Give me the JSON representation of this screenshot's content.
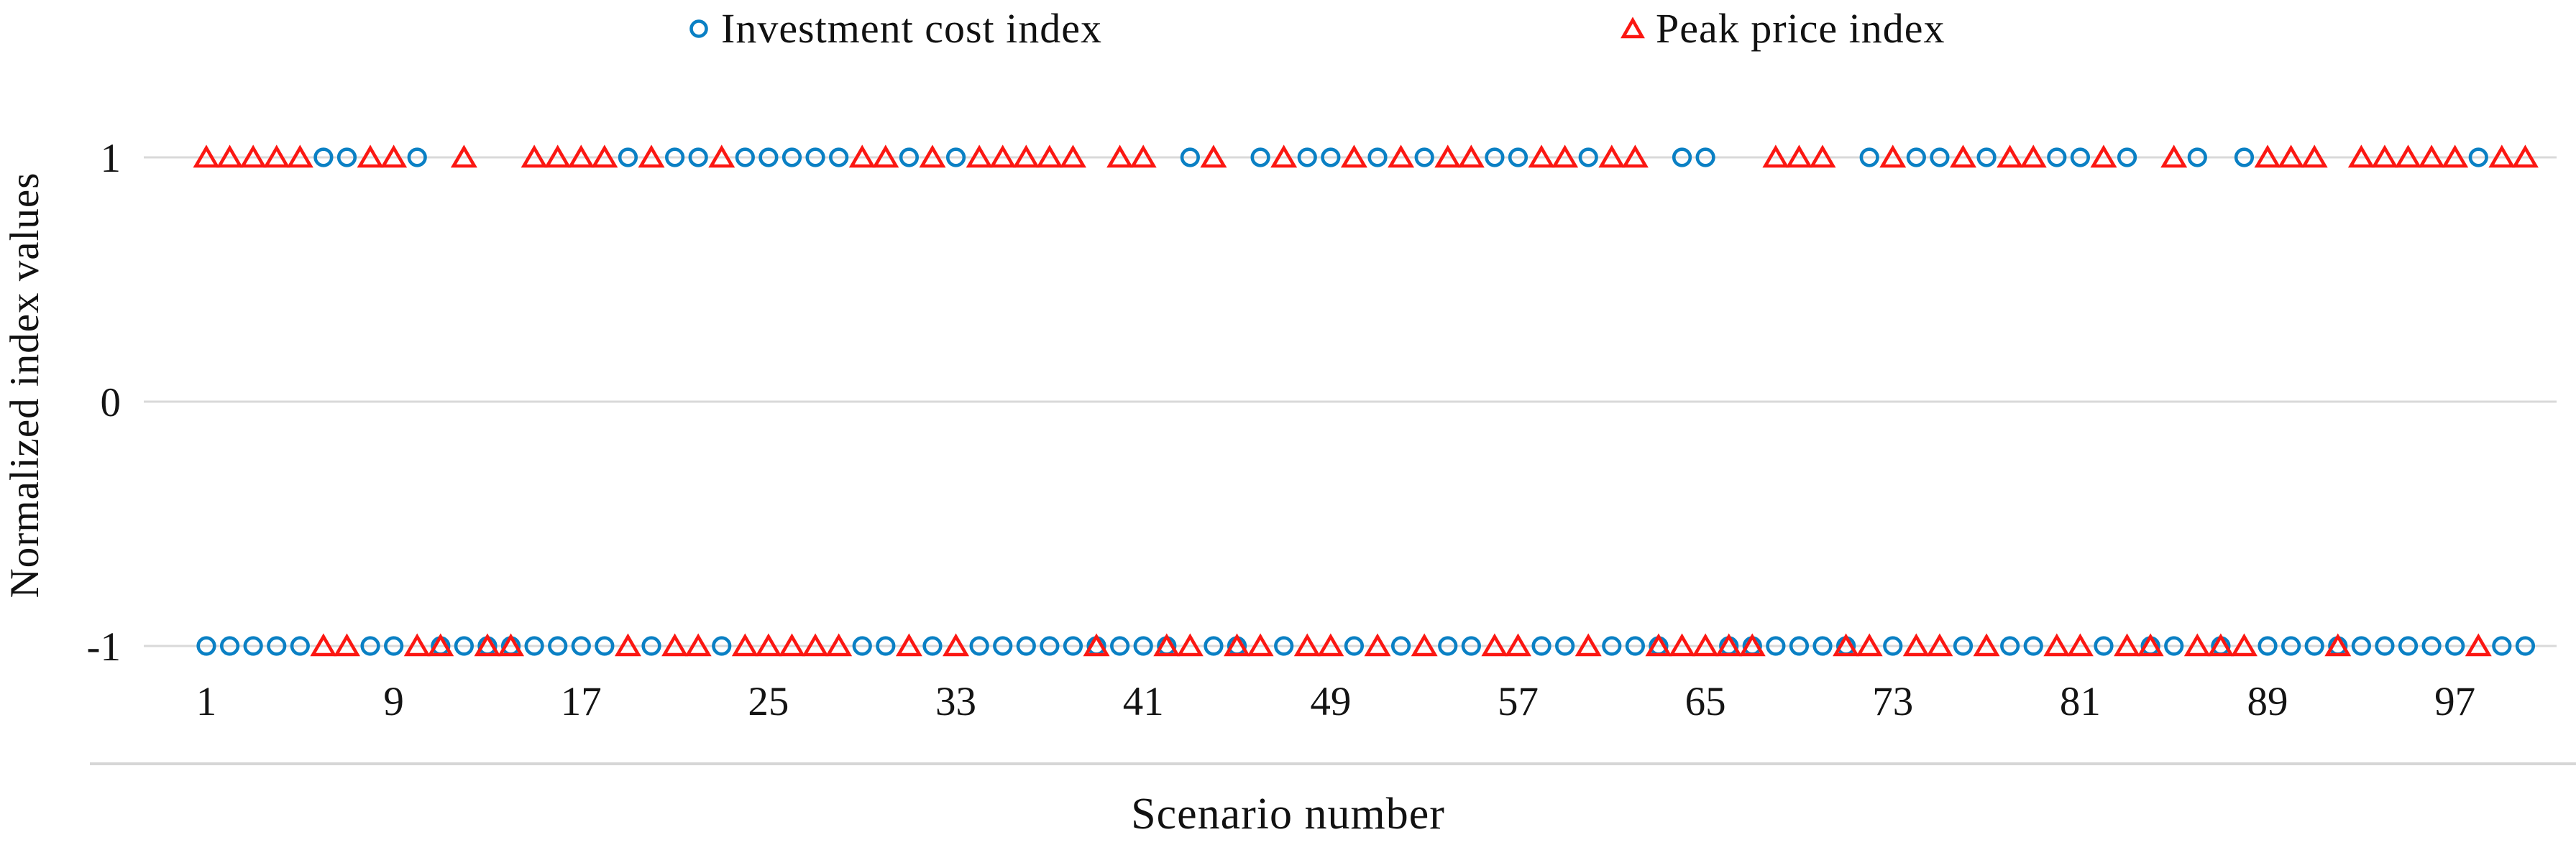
{
  "chart_data": {
    "type": "scatter",
    "title": "",
    "xlabel": "Scenario number",
    "ylabel": "Normalized index values",
    "x_range": [
      1,
      100
    ],
    "x_tick_labels": [
      1,
      9,
      17,
      25,
      33,
      41,
      49,
      57,
      65,
      73,
      81,
      89,
      97
    ],
    "y_tick_labels": [
      1,
      0,
      -1
    ],
    "ylim": [
      -1.5,
      1.5
    ],
    "grid": true,
    "legend_position": "top-center",
    "gridline_color": "#d9d9d9",
    "axis_line_color": "#d6d6d6",
    "series": [
      {
        "name": "Investment cost index",
        "marker": "circle",
        "color": "#0a80c4",
        "values": [
          -1,
          -1,
          -1,
          -1,
          -1,
          1,
          1,
          -1,
          -1,
          1,
          -1,
          -1,
          -1,
          -1,
          -1,
          -1,
          -1,
          -1,
          1,
          -1,
          1,
          1,
          -1,
          1,
          1,
          1,
          1,
          1,
          -1,
          -1,
          1,
          -1,
          1,
          -1,
          -1,
          -1,
          -1,
          -1,
          -1,
          -1,
          -1,
          -1,
          1,
          -1,
          -1,
          1,
          -1,
          1,
          1,
          -1,
          1,
          -1,
          1,
          -1,
          -1,
          1,
          1,
          -1,
          -1,
          1,
          -1,
          -1,
          -1,
          1,
          1,
          -1,
          -1,
          -1,
          -1,
          -1,
          -1,
          1,
          -1,
          1,
          1,
          -1,
          1,
          -1,
          -1,
          1,
          1,
          -1,
          1,
          -1,
          -1,
          1,
          -1,
          1,
          -1,
          -1,
          -1,
          -1,
          -1,
          -1,
          -1,
          -1,
          -1,
          1,
          -1,
          -1
        ]
      },
      {
        "name": "Peak price index",
        "marker": "triangle",
        "color": "#fb1712",
        "values": [
          1,
          1,
          1,
          1,
          1,
          -1,
          -1,
          1,
          1,
          -1,
          -1,
          1,
          -1,
          -1,
          1,
          1,
          1,
          1,
          -1,
          1,
          -1,
          -1,
          1,
          -1,
          -1,
          -1,
          -1,
          -1,
          1,
          1,
          -1,
          1,
          -1,
          1,
          1,
          1,
          1,
          1,
          -1,
          1,
          1,
          -1,
          -1,
          1,
          -1,
          -1,
          1,
          -1,
          -1,
          1,
          -1,
          1,
          -1,
          1,
          1,
          -1,
          -1,
          1,
          1,
          -1,
          1,
          1,
          -1,
          -1,
          -1,
          -1,
          -1,
          1,
          1,
          1,
          -1,
          -1,
          1,
          -1,
          -1,
          1,
          -1,
          1,
          1,
          -1,
          -1,
          1,
          -1,
          -1,
          1,
          -1,
          -1,
          -1,
          1,
          1,
          1,
          -1,
          1,
          1,
          1,
          1,
          1,
          -1,
          1,
          1
        ]
      }
    ]
  },
  "legend": {
    "items": [
      {
        "label": "Investment cost index"
      },
      {
        "label": "Peak price index"
      }
    ]
  },
  "axes": {
    "y_title": "Normalized index values",
    "x_title": "Scenario number"
  }
}
